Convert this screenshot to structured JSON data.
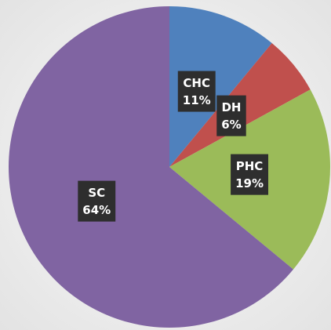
{
  "chart_data": {
    "type": "pie",
    "categories": [
      "CHC",
      "DH",
      "PHC",
      "SC"
    ],
    "values": [
      11,
      6,
      19,
      64
    ],
    "value_labels": [
      "11%",
      "6%",
      "19%",
      "64%"
    ],
    "colors": [
      "#4f81bd",
      "#c0504d",
      "#9bbb59",
      "#8064a2"
    ]
  }
}
